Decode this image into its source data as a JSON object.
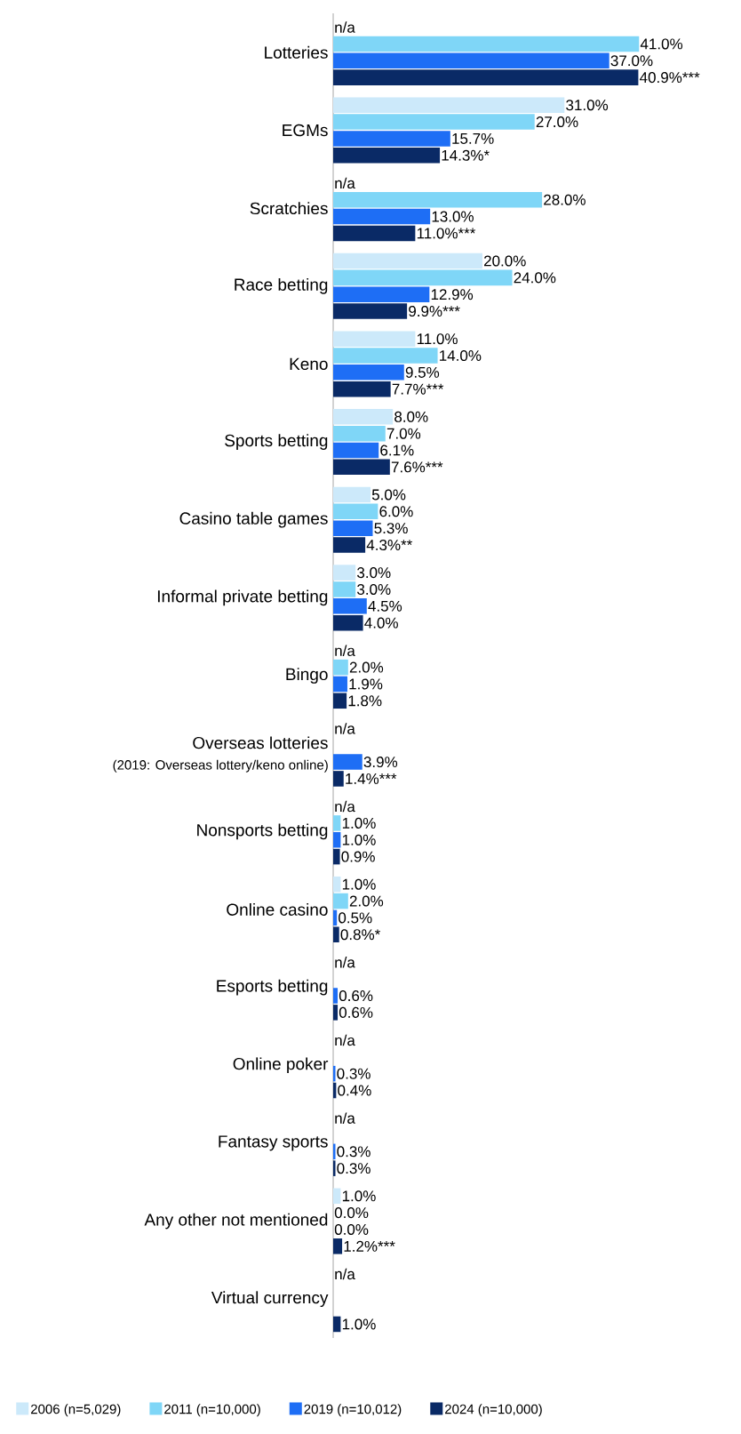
{
  "chart_data": {
    "type": "bar",
    "orientation": "horizontal",
    "legend": "bottom",
    "categories": [
      "Lotteries",
      "EGMs",
      "Scratchies",
      "Race betting",
      "Keno",
      "Sports betting",
      "Casino table games",
      "Informal private betting",
      "Bingo",
      "Overseas lotteries",
      "Nonsports betting",
      "Online casino",
      "Esports betting",
      "Online poker",
      "Fantasy sports",
      "Any other not mentioned",
      "Virtual currency"
    ],
    "annotations": [
      "(2019: Overseas lottery/keno online)"
    ],
    "series": [
      {
        "name": "2006 (n=5,029)",
        "color": "#cce9fa",
        "values": [
          null,
          31.0,
          null,
          20.0,
          11.0,
          8.0,
          5.0,
          3.0,
          null,
          null,
          null,
          1.0,
          null,
          null,
          null,
          1.0,
          null
        ],
        "value_labels": [
          "n/a",
          "31.0%",
          "n/a",
          "20.0%",
          "11.0%",
          "8.0%",
          "5.0%",
          "3.0%",
          "n/a",
          "n/a",
          "n/a",
          "1.0%",
          "n/a",
          "n/a",
          "n/a",
          "1.0%",
          "n/a"
        ]
      },
      {
        "name": "2011 (n=10,000)",
        "color": "#7fd6f7",
        "values": [
          41.0,
          27.0,
          28.0,
          24.0,
          14.0,
          7.0,
          6.0,
          3.0,
          2.0,
          null,
          1.0,
          2.0,
          null,
          null,
          null,
          0.0,
          null
        ],
        "value_labels": [
          "41.0%",
          "27.0%",
          "28.0%",
          "24.0%",
          "14.0%",
          "7.0%",
          "6.0%",
          "3.0%",
          "2.0%",
          null,
          "1.0%",
          "2.0%",
          null,
          null,
          null,
          "0.0%",
          null
        ]
      },
      {
        "name": "2019 (n=10,012)",
        "color": "#1e6ef5",
        "values": [
          37.0,
          15.7,
          13.0,
          12.9,
          9.5,
          6.1,
          5.3,
          4.5,
          1.9,
          3.9,
          1.0,
          0.5,
          0.6,
          0.3,
          0.3,
          0.0,
          null
        ],
        "value_labels": [
          "37.0%",
          "15.7%",
          "13.0%",
          "12.9%",
          "9.5%",
          "6.1%",
          "5.3%",
          "4.5%",
          "1.9%",
          "3.9%",
          "1.0%",
          "0.5%",
          "0.6%",
          "0.3%",
          "0.3%",
          "0.0%",
          null
        ]
      },
      {
        "name": "2024 (n=10,000)",
        "color": "#0a2a66",
        "values": [
          40.9,
          14.3,
          11.0,
          9.9,
          7.7,
          7.6,
          4.3,
          4.0,
          1.8,
          1.4,
          0.9,
          0.8,
          0.6,
          0.4,
          0.3,
          1.2,
          1.0
        ],
        "value_labels": [
          "40.9%***",
          "14.3%*",
          "11.0%***",
          "9.9%***",
          "7.7%***",
          "7.6%***",
          "4.3%**",
          "4.0%",
          "1.8%",
          "1.4%***",
          "0.9%",
          "0.8%*",
          "0.6%",
          "0.4%",
          "0.3%",
          "1.2%***",
          "1.0%"
        ]
      }
    ]
  }
}
